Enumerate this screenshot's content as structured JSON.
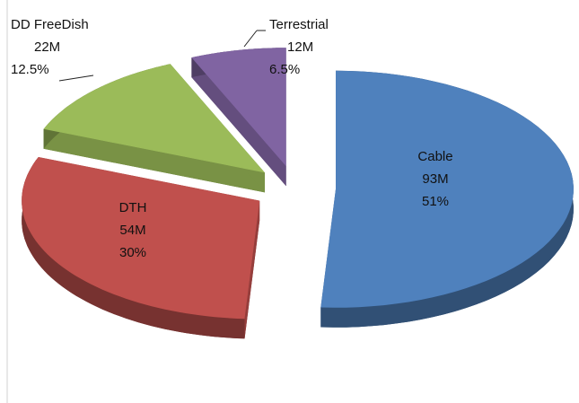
{
  "chart_data": {
    "type": "pie3d",
    "categories": [
      "Cable",
      "DTH",
      "DD FreeDish",
      "Terrestrial"
    ],
    "values": [
      51,
      30,
      12.5,
      6.5
    ],
    "value_labels": [
      "51%",
      "30%",
      "12.5%",
      "6.5%"
    ],
    "subscribers": [
      93,
      54,
      22,
      12
    ],
    "subscriber_labels": [
      "93M",
      "54M",
      "22M",
      "12M"
    ],
    "colors": [
      "#4f81bd",
      "#c0504d",
      "#9bbb59",
      "#8064a2"
    ]
  }
}
